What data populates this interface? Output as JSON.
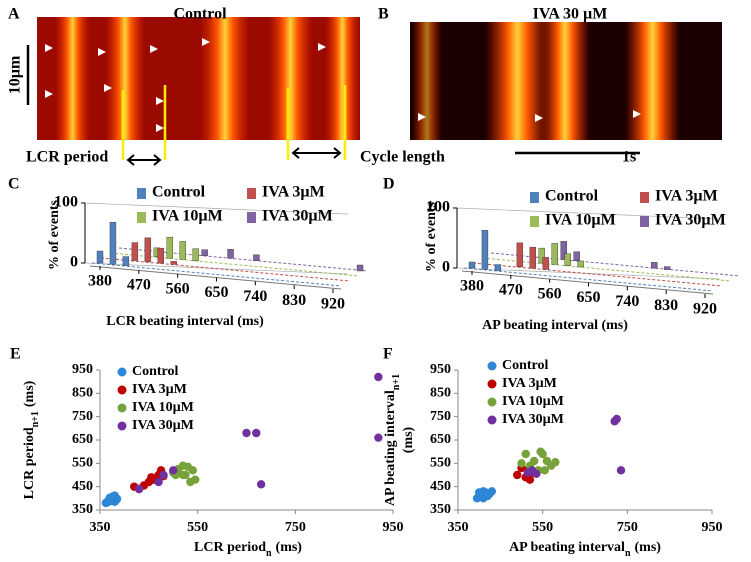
{
  "panels": {
    "A": {
      "label": "A",
      "title": "Control",
      "scale_bar": "10µm",
      "lcr_period": "LCR period",
      "cycle_length": "Cycle length"
    },
    "B": {
      "label": "B",
      "title": "IVA 30 µM",
      "time_bar": "1s"
    }
  },
  "chart_data": [
    {
      "panel": "C",
      "type": "bar3d",
      "y_label": "% of events",
      "x_label": "LCR beating interval (ms)",
      "xlim": [
        380,
        920
      ],
      "xticks": [
        380,
        470,
        560,
        650,
        740,
        830,
        920
      ],
      "ylim": [
        0,
        100
      ],
      "yticks": [
        0,
        100
      ],
      "series": [
        {
          "name": "Control",
          "color": "#4f81bd",
          "x": [
            380,
            410,
            440
          ],
          "values": [
            20,
            70,
            15
          ]
        },
        {
          "name": "IVA 3µM",
          "color": "#c0504d",
          "x": [
            440,
            470,
            500,
            530
          ],
          "values": [
            30,
            40,
            25,
            5
          ]
        },
        {
          "name": "IVA 10µM",
          "color": "#9bbb59",
          "x": [
            470,
            500,
            530,
            560
          ],
          "values": [
            15,
            35,
            30,
            20
          ]
        },
        {
          "name": "IVA 30µM",
          "color": "#8064a2",
          "x": [
            560,
            620,
            680,
            920
          ],
          "values": [
            10,
            15,
            10,
            10
          ]
        }
      ]
    },
    {
      "panel": "D",
      "type": "bar3d",
      "y_label": "% of events",
      "x_label": "AP beating interval (ms)",
      "xlim": [
        380,
        920
      ],
      "xticks": [
        380,
        470,
        560,
        650,
        740,
        830,
        920
      ],
      "ylim": [
        0,
        100
      ],
      "yticks": [
        0,
        100
      ],
      "series": [
        {
          "name": "Control",
          "color": "#4f81bd",
          "x": [
            380,
            410,
            440
          ],
          "values": [
            10,
            65,
            10
          ]
        },
        {
          "name": "IVA 3µM",
          "color": "#c0504d",
          "x": [
            470,
            500,
            530
          ],
          "values": [
            40,
            35,
            20
          ]
        },
        {
          "name": "IVA 10µM",
          "color": "#9bbb59",
          "x": [
            500,
            530,
            560,
            590
          ],
          "values": [
            25,
            35,
            20,
            10
          ]
        },
        {
          "name": "IVA 30µM",
          "color": "#8064a2",
          "x": [
            530,
            560,
            740,
            770
          ],
          "values": [
            30,
            15,
            10,
            5
          ]
        }
      ]
    },
    {
      "panel": "E",
      "type": "scatter",
      "x_label": {
        "text": "LCR period",
        "sub": "n",
        "unit": "(ms)"
      },
      "y_label": {
        "text": "LCR period",
        "sub": "n+1",
        "unit": "(ms)"
      },
      "xlim": [
        350,
        950
      ],
      "xticks": [
        350,
        550,
        750,
        950
      ],
      "ylim": [
        350,
        950
      ],
      "yticks": [
        350,
        450,
        550,
        650,
        750,
        850,
        950
      ],
      "series": [
        {
          "name": "Control",
          "color": "#2e86d6",
          "x": [
            362,
            368,
            372,
            375,
            378,
            380,
            383,
            370,
            376,
            385,
            366,
            380
          ],
          "values": [
            380,
            385,
            390,
            395,
            400,
            385,
            392,
            402,
            408,
            398,
            388,
            412
          ]
        },
        {
          "name": "IVA 3µM",
          "color": "#c00000",
          "x": [
            420,
            440,
            450,
            460,
            470,
            480,
            475,
            455,
            430
          ],
          "values": [
            450,
            455,
            470,
            480,
            500,
            495,
            520,
            490,
            440
          ]
        },
        {
          "name": "IVA 10µM",
          "color": "#77a23a",
          "x": [
            500,
            510,
            520,
            530,
            540,
            525,
            545,
            535,
            520,
            505
          ],
          "values": [
            510,
            525,
            540,
            535,
            520,
            500,
            480,
            470,
            500,
            500
          ]
        },
        {
          "name": "IVA 30µM",
          "color": "#7030a0",
          "x": [
            430,
            470,
            480,
            500,
            650,
            670,
            680,
            920,
            920
          ],
          "values": [
            440,
            470,
            500,
            520,
            680,
            680,
            460,
            920,
            660
          ]
        }
      ]
    },
    {
      "panel": "F",
      "type": "scatter",
      "x_label": {
        "text": "AP beating interval",
        "sub": "n",
        "unit": "(ms)"
      },
      "y_label": {
        "text": "AP beating interval",
        "sub": "n+1",
        "unit": "(ms)"
      },
      "xlim": [
        350,
        950
      ],
      "xticks": [
        350,
        550,
        750,
        950
      ],
      "ylim": [
        350,
        950
      ],
      "yticks": [
        350,
        450,
        550,
        650,
        750,
        850,
        950
      ],
      "series": [
        {
          "name": "Control",
          "color": "#2e86d6",
          "x": [
            395,
            400,
            405,
            410,
            415,
            420,
            425,
            410,
            430,
            400
          ],
          "values": [
            400,
            410,
            420,
            430,
            425,
            410,
            420,
            400,
            430,
            425
          ]
        },
        {
          "name": "IVA 3µM",
          "color": "#c00000",
          "x": [
            490,
            510,
            520,
            500,
            530,
            515
          ],
          "values": [
            500,
            490,
            480,
            530,
            510,
            520
          ]
        },
        {
          "name": "IVA 10µM",
          "color": "#77a23a",
          "x": [
            500,
            510,
            530,
            540,
            550,
            560,
            570,
            580,
            555,
            520,
            545
          ],
          "values": [
            550,
            590,
            560,
            520,
            590,
            560,
            540,
            555,
            520,
            540,
            600
          ]
        },
        {
          "name": "IVA 30µM",
          "color": "#7030a0",
          "x": [
            515,
            525,
            535,
            720,
            725,
            735
          ],
          "values": [
            510,
            520,
            505,
            730,
            740,
            520
          ]
        }
      ]
    }
  ]
}
